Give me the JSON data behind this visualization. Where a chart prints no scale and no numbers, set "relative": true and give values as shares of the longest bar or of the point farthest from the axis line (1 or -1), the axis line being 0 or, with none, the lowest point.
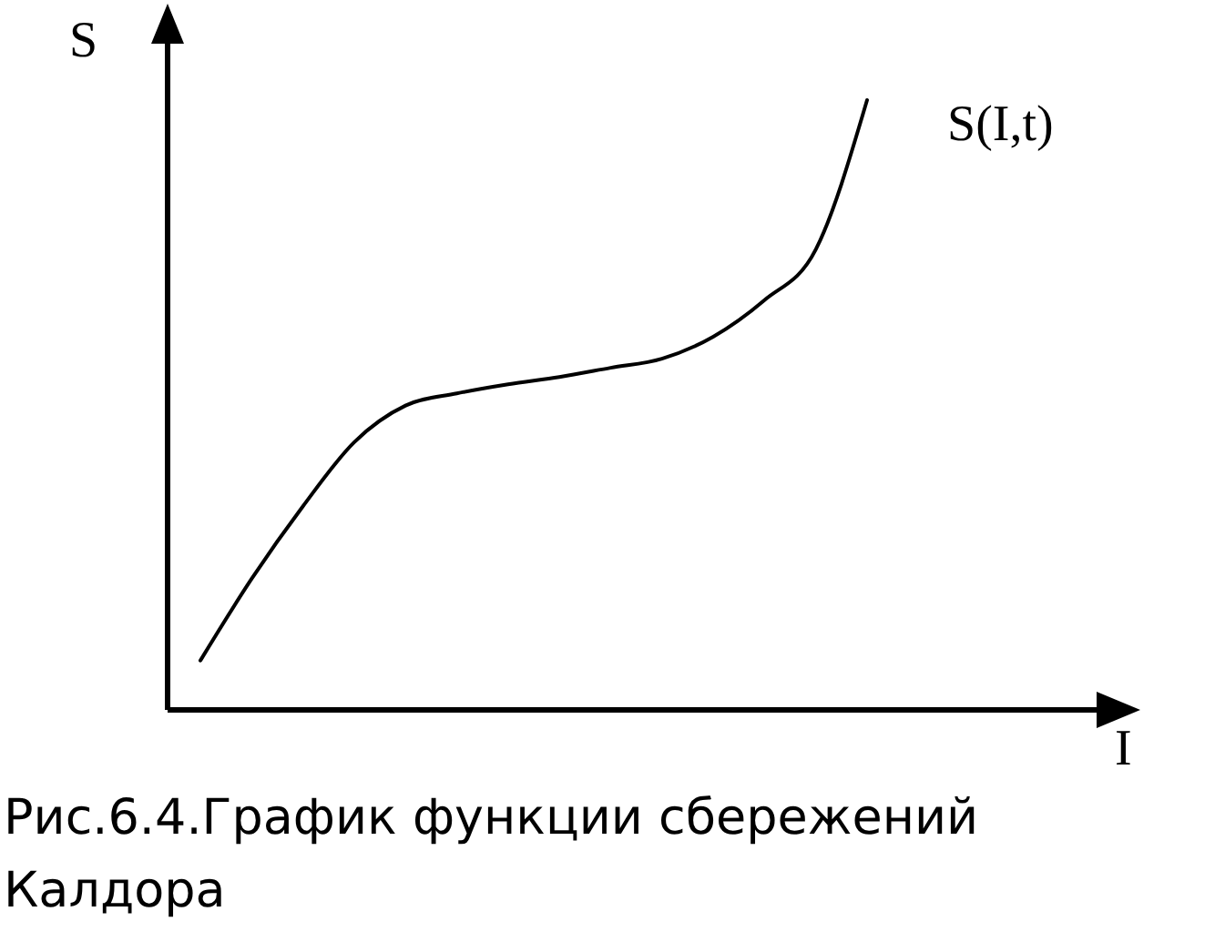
{
  "chart_data": {
    "type": "line",
    "relative": true,
    "xlabel": "I",
    "ylabel": "S",
    "annotations": [
      "Рис.6.4.График функции сбережений Калдора"
    ],
    "categories": [
      null,
      null,
      null,
      null,
      null,
      null,
      null,
      null,
      null,
      null,
      null,
      null,
      null,
      null
    ],
    "series": [
      {
        "name": "S(I,t)",
        "color": "#000000",
        "values": [
          0.081,
          0.215,
          0.334,
          0.439,
          0.499,
          0.519,
          0.534,
          0.546,
          0.561,
          0.576,
          0.612,
          0.672,
          0.755,
          1
        ]
      }
    ],
    "marker": "none",
    "line_style": "solid"
  }
}
